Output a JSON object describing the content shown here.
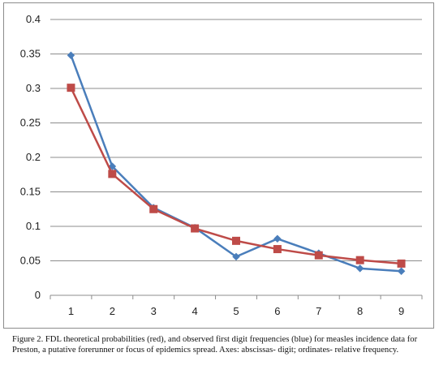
{
  "chart_data": {
    "type": "line",
    "x": [
      1,
      2,
      3,
      4,
      5,
      6,
      7,
      8,
      9
    ],
    "series": [
      {
        "color": "#4a7ebb",
        "marker": "diamond",
        "values": [
          0.348,
          0.187,
          0.127,
          0.098,
          0.056,
          0.082,
          0.061,
          0.039,
          0.035
        ]
      },
      {
        "color": "#be4b48",
        "marker": "square",
        "values": [
          0.301,
          0.176,
          0.125,
          0.097,
          0.079,
          0.067,
          0.058,
          0.051,
          0.046
        ]
      }
    ],
    "ylim": [
      0,
      0.4
    ],
    "y_ticks": [
      "0",
      "0.05",
      "0.1",
      "0.15",
      "0.2",
      "0.25",
      "0.3",
      "0.35",
      "0.4"
    ],
    "x_ticks": [
      "1",
      "2",
      "3",
      "4",
      "5",
      "6",
      "7",
      "8",
      "9"
    ],
    "grid": "horizontal",
    "legend": "none"
  },
  "caption": "Figure 2. FDL theoretical probabilities (red), and observed first digit frequencies (blue) for measles incidence data for Preston, a putative forerunner or focus of epidemics spread. Axes: abscissas- digit; ordinates- relative frequency."
}
